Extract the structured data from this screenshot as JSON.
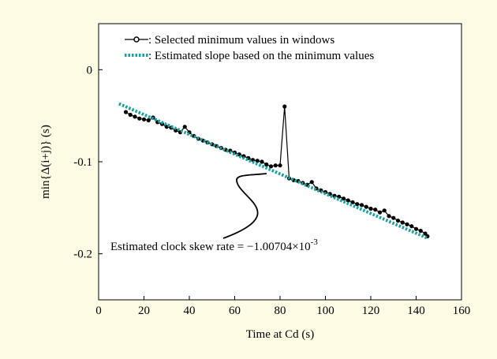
{
  "chart_data": {
    "type": "line",
    "x_label": "Time at Cd (s)",
    "y_label": "min{Δ(i+j)} (s)",
    "annotation": {
      "text": "Estimated clock skew rate = −1.00704×10",
      "exponent": "-3"
    },
    "xlim": [
      0,
      160
    ],
    "xticks": [
      0,
      20,
      40,
      60,
      80,
      100,
      120,
      140,
      160
    ],
    "ylim": [
      -0.25,
      0.05
    ],
    "yticks": [
      0,
      -0.1,
      -0.2
    ],
    "series": [
      {
        "name": ": Selected minimum values in windows",
        "color": "#000000",
        "style": "line-marker",
        "x": [
          12,
          14,
          16,
          18,
          20,
          22,
          24,
          26,
          28,
          30,
          32,
          34,
          36,
          38,
          40,
          42,
          44,
          46,
          48,
          50,
          52,
          54,
          56,
          58,
          60,
          62,
          64,
          66,
          68,
          70,
          72,
          74,
          76,
          78,
          80,
          82,
          84,
          86,
          88,
          90,
          92,
          94,
          96,
          98,
          100,
          102,
          104,
          106,
          108,
          110,
          112,
          114,
          116,
          118,
          120,
          122,
          124,
          126,
          128,
          130,
          132,
          134,
          136,
          138,
          140,
          142,
          144,
          145
        ],
        "values": [
          -0.046,
          -0.049,
          -0.051,
          -0.053,
          -0.054,
          -0.055,
          -0.052,
          -0.057,
          -0.059,
          -0.062,
          -0.063,
          -0.066,
          -0.068,
          -0.062,
          -0.068,
          -0.072,
          -0.075,
          -0.077,
          -0.079,
          -0.081,
          -0.083,
          -0.085,
          -0.087,
          -0.088,
          -0.09,
          -0.092,
          -0.094,
          -0.096,
          -0.098,
          -0.099,
          -0.1,
          -0.103,
          -0.105,
          -0.104,
          -0.104,
          -0.04,
          -0.118,
          -0.12,
          -0.121,
          -0.123,
          -0.125,
          -0.122,
          -0.129,
          -0.131,
          -0.133,
          -0.135,
          -0.137,
          -0.138,
          -0.14,
          -0.142,
          -0.144,
          -0.146,
          -0.147,
          -0.149,
          -0.151,
          -0.152,
          -0.155,
          -0.153,
          -0.159,
          -0.161,
          -0.164,
          -0.166,
          -0.168,
          -0.17,
          -0.173,
          -0.175,
          -0.178,
          -0.181
        ]
      },
      {
        "name": ": Estimated slope based on the minimum values",
        "color": "#1e9e9e",
        "style": "dotted",
        "x": [
          9,
          145
        ],
        "values": [
          -0.037,
          -0.183
        ]
      }
    ]
  }
}
